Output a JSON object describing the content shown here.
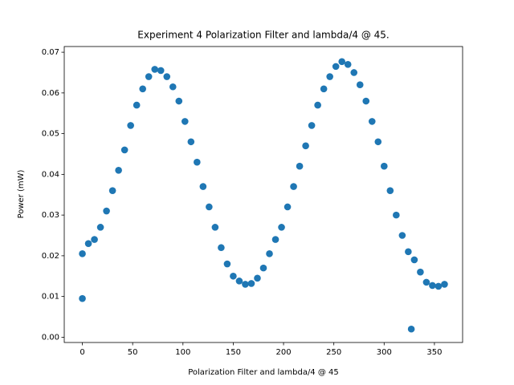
{
  "chart_data": {
    "type": "scatter",
    "title": "Experiment 4 Polarization Filter and lambda/4 @ 45.",
    "xlabel": "Polarization Filter and lambda/4 @ 45",
    "ylabel": "Power (mW)",
    "color": "#1f77b4",
    "x": [
      0,
      6,
      12,
      18,
      24,
      30,
      36,
      42,
      48,
      54,
      60,
      66,
      72,
      78,
      84,
      90,
      96,
      102,
      108,
      114,
      120,
      126,
      132,
      138,
      144,
      150,
      156,
      162,
      168,
      174,
      180,
      186,
      192,
      198,
      204,
      210,
      216,
      222,
      228,
      234,
      240,
      246,
      252,
      258,
      264,
      270,
      276,
      282,
      288,
      294,
      300,
      306,
      312,
      318,
      324,
      330,
      336,
      342,
      348,
      354,
      360,
      0,
      327
    ],
    "values": [
      0.0205,
      0.023,
      0.024,
      0.027,
      0.031,
      0.036,
      0.041,
      0.046,
      0.052,
      0.057,
      0.061,
      0.064,
      0.0658,
      0.0655,
      0.064,
      0.0615,
      0.058,
      0.053,
      0.048,
      0.043,
      0.037,
      0.032,
      0.027,
      0.022,
      0.018,
      0.015,
      0.0138,
      0.013,
      0.0132,
      0.0145,
      0.017,
      0.0205,
      0.024,
      0.027,
      0.032,
      0.037,
      0.042,
      0.047,
      0.052,
      0.057,
      0.061,
      0.064,
      0.0665,
      0.0677,
      0.067,
      0.065,
      0.062,
      0.058,
      0.053,
      0.048,
      0.042,
      0.036,
      0.03,
      0.025,
      0.021,
      0.019,
      0.016,
      0.0135,
      0.0127,
      0.0125,
      0.013,
      0.0095,
      0.002
    ],
    "xlim": [
      -18,
      378
    ],
    "ylim": [
      -0.0013,
      0.0714
    ],
    "xticks": [
      0,
      50,
      100,
      150,
      200,
      250,
      300,
      350
    ],
    "yticks": [
      {
        "value": 0,
        "label": "0.00"
      },
      {
        "value": 0.01,
        "label": "0.01"
      },
      {
        "value": 0.02,
        "label": "0.02"
      },
      {
        "value": 0.03,
        "label": "0.03"
      },
      {
        "value": 0.04,
        "label": "0.04"
      },
      {
        "value": 0.05,
        "label": "0.05"
      },
      {
        "value": 0.06,
        "label": "0.06"
      },
      {
        "value": 0.07,
        "label": "0.07"
      }
    ]
  }
}
